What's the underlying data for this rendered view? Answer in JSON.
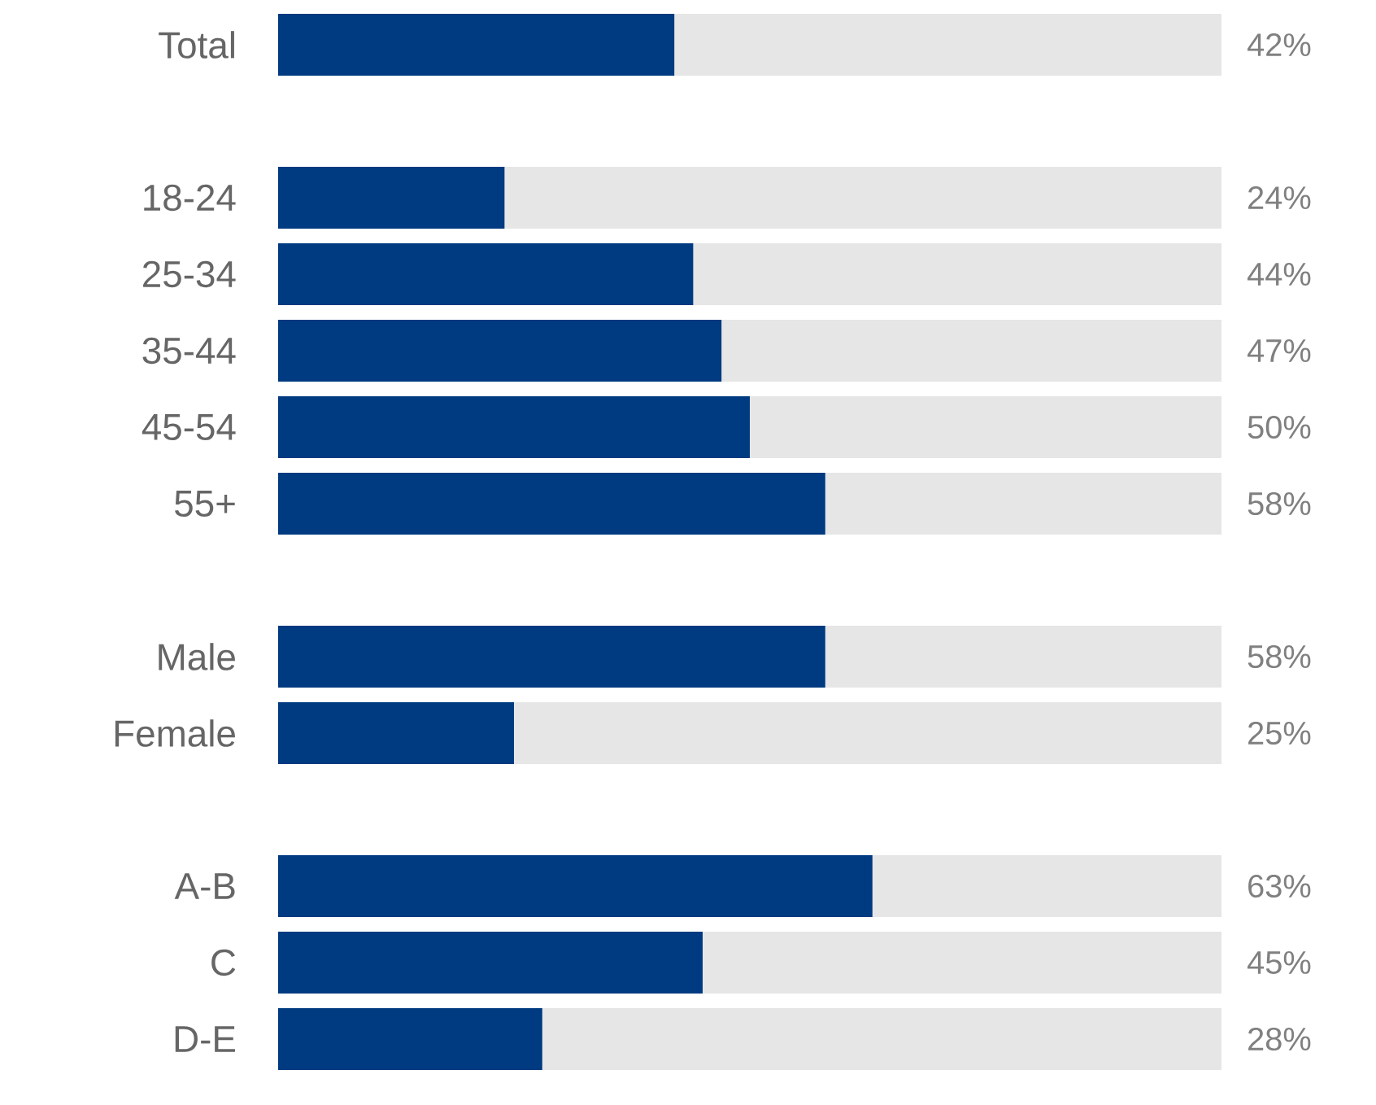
{
  "chart_data": {
    "type": "bar",
    "orientation": "horizontal",
    "stacked": true,
    "categories": [
      "Total",
      null,
      "18-24",
      "25-34",
      "35-44",
      "45-54",
      "55+",
      null,
      "Male",
      "Female",
      null,
      "A-B",
      "C",
      "D-E"
    ],
    "series": [
      {
        "color": "#003a80",
        "values": [
          42,
          null,
          24,
          44,
          47,
          50,
          58,
          null,
          58,
          25,
          null,
          63,
          45,
          28
        ],
        "value_labels": [
          "42%",
          null,
          "24%",
          "44%",
          "47%",
          "50%",
          "58%",
          null,
          "58%",
          "25%",
          null,
          "63%",
          "45%",
          "28%"
        ]
      },
      {
        "color": "#e6e6e6",
        "values": [
          58,
          null,
          76,
          56,
          53,
          50,
          42,
          null,
          42,
          75,
          null,
          37,
          55,
          72
        ]
      }
    ],
    "xlim": [
      0,
      100
    ],
    "tick_labels": "y"
  }
}
